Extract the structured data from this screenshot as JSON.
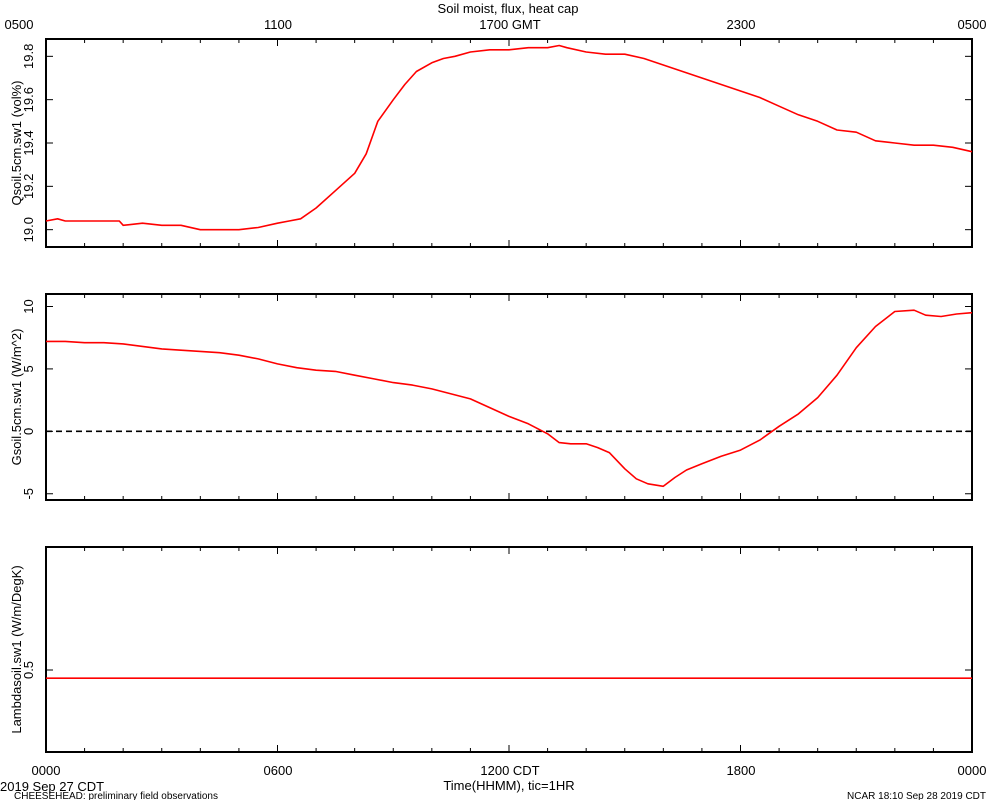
{
  "title": "Soil moist, flux, heat cap",
  "top_axis": {
    "unit_suffix": "GMT",
    "tick_labels": [
      "0500",
      "1100",
      "1700 GMT",
      "2300",
      "0500"
    ]
  },
  "bottom_axis": {
    "tick_labels": [
      "0000",
      "0600",
      "1200 CDT",
      "1800",
      "0000"
    ],
    "xlabel": "Time(HHMM), tic=1HR"
  },
  "footer": {
    "date": "2019 Sep 27 CDT",
    "project": "CHEESEHEAD: preliminary field observations",
    "stamp": "NCAR 18:10 Sep 28 2019 CDT"
  },
  "colors": {
    "series": "#ff0000",
    "frame": "#000000",
    "background": "#ffffff"
  },
  "chart_data": [
    {
      "type": "line",
      "ylabel": "Qsoil.5cm.sw1 (vol%)",
      "x_unit": "hours since 0000 CDT",
      "xlim": [
        0,
        24
      ],
      "ylim": [
        18.92,
        19.88
      ],
      "yticks": [
        19.0,
        19.2,
        19.4,
        19.6,
        19.8
      ],
      "ytick_labels": [
        "19.0",
        "19.2",
        "19.4",
        "19.6",
        "19.8"
      ],
      "series": [
        {
          "x": [
            0,
            0.3,
            0.5,
            1,
            1.5,
            1.9,
            2.0,
            2.5,
            3,
            3.5,
            4,
            4.5,
            5,
            5.5,
            6,
            6.3,
            6.6,
            7,
            7.5,
            8,
            8.3,
            8.6,
            9,
            9.3,
            9.6,
            10,
            10.3,
            10.6,
            11,
            11.5,
            12,
            12.5,
            13,
            13.3,
            13.5,
            14,
            14.5,
            15,
            15.5,
            16,
            16.5,
            17,
            17.5,
            18,
            18.5,
            19,
            19.5,
            20,
            20.5,
            21,
            21.5,
            22,
            22.5,
            23,
            23.5,
            24
          ],
          "y": [
            19.04,
            19.05,
            19.04,
            19.04,
            19.04,
            19.04,
            19.02,
            19.03,
            19.02,
            19.02,
            19.0,
            19.0,
            19.0,
            19.01,
            19.03,
            19.04,
            19.05,
            19.1,
            19.18,
            19.26,
            19.35,
            19.5,
            19.6,
            19.67,
            19.73,
            19.77,
            19.79,
            19.8,
            19.82,
            19.83,
            19.83,
            19.84,
            19.84,
            19.85,
            19.84,
            19.82,
            19.81,
            19.81,
            19.79,
            19.76,
            19.73,
            19.7,
            19.67,
            19.64,
            19.61,
            19.57,
            19.53,
            19.5,
            19.46,
            19.45,
            19.41,
            19.4,
            19.39,
            19.39,
            19.38,
            19.36
          ]
        }
      ]
    },
    {
      "type": "line",
      "ylabel": "Gsoil.5cm.sw1 (W/m^2)",
      "x_unit": "hours since 0000 CDT",
      "xlim": [
        0,
        24
      ],
      "ylim": [
        -5.5,
        11.0
      ],
      "yticks": [
        -5,
        0,
        5,
        10
      ],
      "ytick_labels": [
        "-5",
        "0",
        "5",
        "10"
      ],
      "reference_line": {
        "y": 0,
        "style": "dashed"
      },
      "series": [
        {
          "x": [
            0,
            0.5,
            1,
            1.5,
            2,
            2.5,
            3,
            3.5,
            4,
            4.5,
            5,
            5.5,
            6,
            6.5,
            7,
            7.5,
            8,
            8.5,
            9,
            9.5,
            10,
            10.5,
            11,
            11.5,
            12,
            12.5,
            13,
            13.3,
            13.6,
            14,
            14.3,
            14.6,
            15,
            15.3,
            15.6,
            16,
            16.3,
            16.6,
            17,
            17.5,
            18,
            18.5,
            19,
            19.5,
            20,
            20.5,
            21,
            21.5,
            22,
            22.5,
            22.8,
            23.2,
            23.6,
            24
          ],
          "y": [
            7.2,
            7.2,
            7.1,
            7.1,
            7.0,
            6.8,
            6.6,
            6.5,
            6.4,
            6.3,
            6.1,
            5.8,
            5.4,
            5.1,
            4.9,
            4.8,
            4.5,
            4.2,
            3.9,
            3.7,
            3.4,
            3.0,
            2.6,
            1.9,
            1.2,
            0.6,
            -0.2,
            -0.9,
            -1.0,
            -1.0,
            -1.3,
            -1.7,
            -3.0,
            -3.8,
            -4.2,
            -4.4,
            -3.7,
            -3.1,
            -2.6,
            -2.0,
            -1.5,
            -0.7,
            0.4,
            1.4,
            2.7,
            4.5,
            6.7,
            8.4,
            9.6,
            9.7,
            9.3,
            9.2,
            9.4,
            9.5
          ]
        }
      ]
    },
    {
      "type": "line",
      "ylabel": "Lambdasoil.sw1 (W/m/DegK)",
      "x_unit": "hours since 0000 CDT",
      "xlim": [
        0,
        24
      ],
      "ylim": [
        0.4,
        0.65
      ],
      "yticks": [
        0.5
      ],
      "ytick_labels": [
        "0.5"
      ],
      "series": [
        {
          "x": [
            0,
            24
          ],
          "y": [
            0.49,
            0.49
          ]
        }
      ]
    }
  ]
}
